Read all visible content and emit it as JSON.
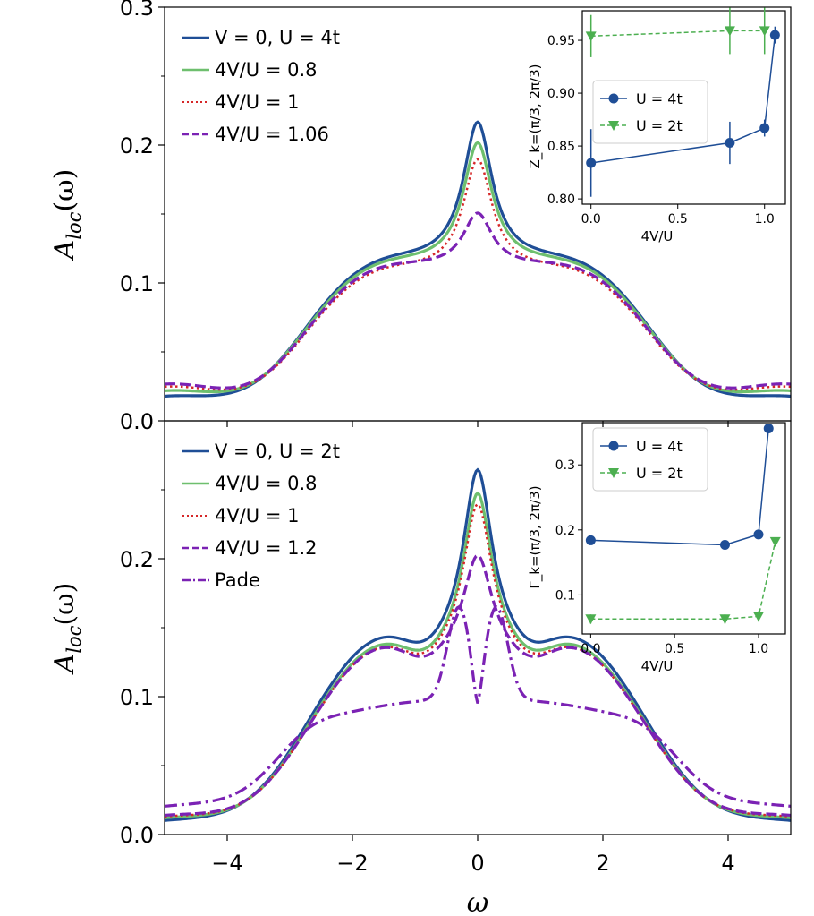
{
  "chart_data": [
    {
      "type": "line",
      "panel": "top",
      "xlabel": "",
      "ylabel": "A_loc(ω)",
      "ylabel_parts": {
        "base": "A",
        "sub": "loc",
        "suffix": "(ω)"
      },
      "xlim": [
        -5,
        5
      ],
      "ylim": [
        0,
        0.3
      ],
      "xticks": [
        "−4",
        "−2",
        "0",
        "2",
        "4"
      ],
      "xtick_values": [
        -4,
        -2,
        0,
        2,
        4
      ],
      "show_xtick_labels": false,
      "yticks": [
        "0.0",
        "0.1",
        "0.2",
        "0.3"
      ],
      "ytick_values": [
        0,
        0.1,
        0.2,
        0.3
      ],
      "legend_position": "top-left",
      "series": [
        {
          "name": "V = 0, U = 4t",
          "color": "#1f4e96",
          "style": "solid",
          "params": {
            "peak": 0.217,
            "shoulder": 0.117,
            "edge": 0.016
          }
        },
        {
          "name": "4V/U = 0.8",
          "color": "#6ebf6e",
          "style": "solid",
          "params": {
            "peak": 0.202,
            "shoulder": 0.115,
            "edge": 0.02
          }
        },
        {
          "name": "4V/U = 1",
          "color": "#d62728",
          "style": "dotted",
          "params": {
            "peak": 0.19,
            "shoulder": 0.11,
            "edge": 0.023
          }
        },
        {
          "name": "4V/U = 1.06",
          "color": "#7b22b4",
          "style": "dashed",
          "params": {
            "peak": 0.151,
            "shoulder": 0.113,
            "edge": 0.025
          }
        }
      ],
      "inset": {
        "ylabel": "Z_k=(π/3, 2π/3)",
        "xlabel": "4V/U",
        "xlim": [
          -0.05,
          1.12
        ],
        "ylim": [
          0.795,
          0.978
        ],
        "xticks": [
          "0.0",
          "0.5",
          "1.0"
        ],
        "xtick_values": [
          0,
          0.5,
          1.0
        ],
        "yticks": [
          "0.80",
          "0.85",
          "0.90",
          "0.95"
        ],
        "ytick_values": [
          0.8,
          0.85,
          0.9,
          0.95
        ],
        "legend_position": "center-left",
        "series": [
          {
            "name": "U = 4t",
            "color": "#1f4e96",
            "marker": "circle",
            "style": "solid",
            "x": [
              0,
              0.8,
              1.0,
              1.06
            ],
            "y": [
              0.834,
              0.853,
              0.867,
              0.955
            ],
            "err": [
              0.032,
              0.02,
              0.008,
              0.008
            ]
          },
          {
            "name": "U = 2t",
            "color": "#4caf50",
            "marker": "triangle-down",
            "style": "dashed",
            "x": [
              0,
              0.8,
              1.0
            ],
            "y": [
              0.954,
              0.959,
              0.959
            ],
            "err": [
              0.02,
              0.022,
              0.022
            ]
          }
        ]
      }
    },
    {
      "type": "line",
      "panel": "bottom",
      "xlabel": "ω",
      "ylabel": "A_loc(ω)",
      "ylabel_parts": {
        "base": "A",
        "sub": "loc",
        "suffix": "(ω)"
      },
      "xlim": [
        -5,
        5
      ],
      "ylim": [
        0,
        0.3
      ],
      "xticks": [
        "−4",
        "−2",
        "0",
        "2",
        "4"
      ],
      "xtick_values": [
        -4,
        -2,
        0,
        2,
        4
      ],
      "show_xtick_labels": true,
      "yticks": [
        "0.0",
        "0.1",
        "0.2"
      ],
      "ytick_values": [
        0,
        0.1,
        0.2
      ],
      "legend_position": "top-left",
      "series": [
        {
          "name": "V = 0, U = 2t",
          "color": "#1f4e96",
          "style": "solid",
          "params": {
            "peak": 0.265,
            "shoulder": 0.137,
            "edge": 0.008
          }
        },
        {
          "name": "4V/U = 0.8",
          "color": "#6ebf6e",
          "style": "solid",
          "params": {
            "peak": 0.248,
            "shoulder": 0.132,
            "edge": 0.01
          }
        },
        {
          "name": "4V/U = 1",
          "color": "#d62728",
          "style": "dotted",
          "params": {
            "peak": 0.24,
            "shoulder": 0.13,
            "edge": 0.011
          }
        },
        {
          "name": "4V/U = 1.2",
          "color": "#7b22b4",
          "style": "dashed",
          "params": {
            "peak": 0.203,
            "shoulder": 0.131,
            "edge": 0.012
          }
        },
        {
          "name": "Pade",
          "color": "#7b22b4",
          "style": "dashdot",
          "params": {
            "center": 0.115,
            "side_peak": 0.152,
            "shoulder": 0.104,
            "edge": 0.018
          }
        }
      ],
      "inset": {
        "ylabel": "Γ_k=(π/3, 2π/3)",
        "xlabel": "4V/U",
        "xlim": [
          -0.05,
          1.16
        ],
        "ylim": [
          0.04,
          0.365
        ],
        "xticks": [
          "0.0",
          "0.5",
          "1.0"
        ],
        "xtick_values": [
          0,
          0.5,
          1.0
        ],
        "yticks": [
          "0.1",
          "0.2",
          "0.3"
        ],
        "ytick_values": [
          0.1,
          0.2,
          0.3
        ],
        "legend_position": "top-left",
        "series": [
          {
            "name": "U = 4t",
            "color": "#1f4e96",
            "marker": "circle",
            "style": "solid",
            "x": [
              0,
              0.8,
              1.0,
              1.06
            ],
            "y": [
              0.184,
              0.177,
              0.193,
              0.356
            ],
            "err": [
              0,
              0,
              0,
              0
            ]
          },
          {
            "name": "U = 2t",
            "color": "#4caf50",
            "marker": "triangle-down",
            "style": "dashed",
            "x": [
              0,
              0.8,
              1.0,
              1.1
            ],
            "y": [
              0.063,
              0.063,
              0.067,
              0.182
            ],
            "err": [
              0.007,
              0.007,
              0.008,
              0
            ]
          }
        ]
      }
    }
  ]
}
